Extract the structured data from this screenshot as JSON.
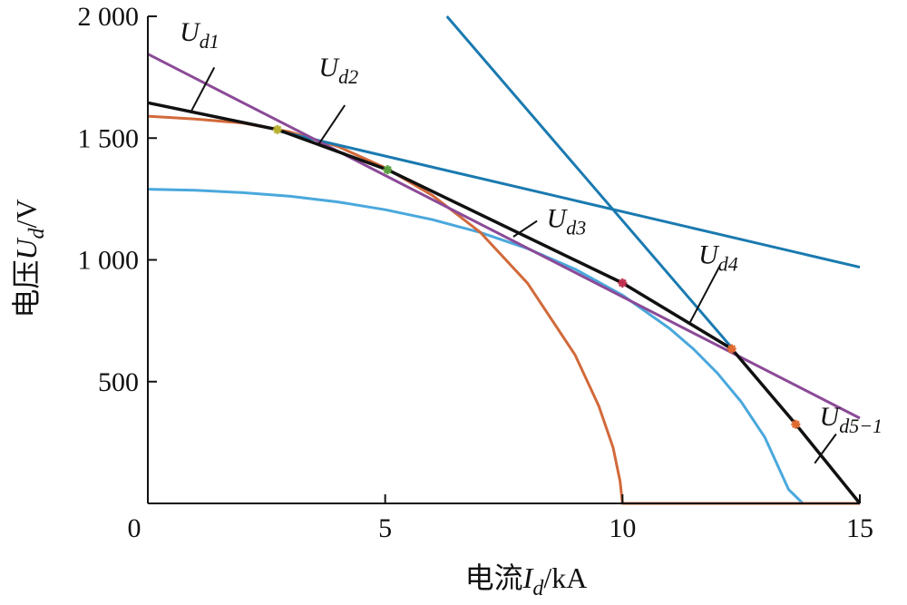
{
  "chart_data": {
    "type": "line",
    "title": "",
    "xlabel": {
      "prefix": "电流",
      "sym": "I",
      "sub": "d",
      "unit": "/kA"
    },
    "ylabel": {
      "prefix": "电压",
      "sym": "U",
      "sub": "d",
      "unit": "/V"
    },
    "xlim": [
      0,
      15
    ],
    "ylim": [
      0,
      2000
    ],
    "x_ticks": [
      {
        "value": 0,
        "label": "0"
      },
      {
        "value": 5,
        "label": "5"
      },
      {
        "value": 10,
        "label": "10"
      },
      {
        "value": 15,
        "label": "15"
      }
    ],
    "y_ticks": [
      {
        "value": 500,
        "label": "500"
      },
      {
        "value": 1000,
        "label": "1 000"
      },
      {
        "value": 1500,
        "label": "1 500"
      },
      {
        "value": 2000,
        "label": "2 000"
      }
    ],
    "grid": false,
    "series": [
      {
        "color": "#4aa8dc",
        "width": 3,
        "x": [
          0,
          1,
          2,
          3,
          4,
          5,
          6,
          7,
          8,
          9,
          10,
          11,
          11.5,
          12,
          12.5,
          13,
          13.5,
          13.8,
          14,
          14.1,
          14.15,
          14.15,
          15
        ],
        "y": [
          1290,
          1286,
          1276,
          1261,
          1238,
          1206,
          1165,
          1113,
          1046,
          962,
          855,
          717,
          633,
          535,
          417,
          271,
          57,
          0,
          0,
          0,
          0,
          0,
          0
        ]
      },
      {
        "color": "#d2693a",
        "width": 3,
        "x": [
          0,
          1,
          2,
          3,
          4,
          5,
          6,
          7,
          8,
          9,
          9.5,
          9.8,
          9.95,
          10,
          10,
          15
        ],
        "y": [
          1590,
          1578,
          1562,
          1525,
          1466,
          1378,
          1264,
          1114,
          904,
          610,
          400,
          230,
          90,
          0,
          0,
          0
        ]
      },
      {
        "color": "#1a7ab0",
        "width": 3,
        "x": [
          2.73,
          15
        ],
        "y": [
          1530,
          970
        ]
      },
      {
        "color": "#1a7ab0",
        "width": 3,
        "x": [
          6.3,
          12.3
        ],
        "y": [
          2000,
          640
        ]
      },
      {
        "color": "#8b4a97",
        "width": 3,
        "x": [
          0,
          15
        ],
        "y": [
          1845,
          350
        ]
      },
      {
        "color": "#111111",
        "width": 3.5,
        "x": [
          0,
          2.73,
          5.05,
          10.0,
          12.3,
          13.65,
          15
        ],
        "y": [
          1645,
          1535,
          1370,
          905,
          635,
          325,
          0
        ]
      }
    ],
    "markers": [
      {
        "x": 2.73,
        "y": 1535,
        "color": "#b8b030"
      },
      {
        "x": 5.05,
        "y": 1370,
        "color": "#5aa040"
      },
      {
        "x": 10.0,
        "y": 905,
        "color": "#c03050"
      },
      {
        "x": 12.3,
        "y": 635,
        "color": "#e06a30"
      },
      {
        "x": 13.65,
        "y": 325,
        "color": "#e06a30"
      }
    ],
    "annotations": [
      {
        "sym": "U",
        "sub": "d1",
        "tx": 0.67,
        "ty": 1900,
        "ax": 1.4,
        "ay": 1790,
        "bx": 0.9,
        "by": 1605
      },
      {
        "sym": "U",
        "sub": "d2",
        "tx": 3.6,
        "ty": 1755,
        "ax": 4.15,
        "ay": 1635,
        "bx": 3.6,
        "by": 1475
      },
      {
        "sym": "U",
        "sub": "d3",
        "tx": 8.4,
        "ty": 1135,
        "ax": 8.2,
        "ay": 1160,
        "bx": 7.7,
        "by": 1095
      },
      {
        "sym": "U",
        "sub": "d4",
        "tx": 11.6,
        "ty": 985,
        "ax": 12.05,
        "ay": 975,
        "bx": 11.4,
        "by": 735
      },
      {
        "sym": "U",
        "sub": "d5−1",
        "tx": 14.15,
        "ty": 320,
        "ax": 14.5,
        "ay": 285,
        "bx": 14.05,
        "by": 165
      }
    ]
  }
}
